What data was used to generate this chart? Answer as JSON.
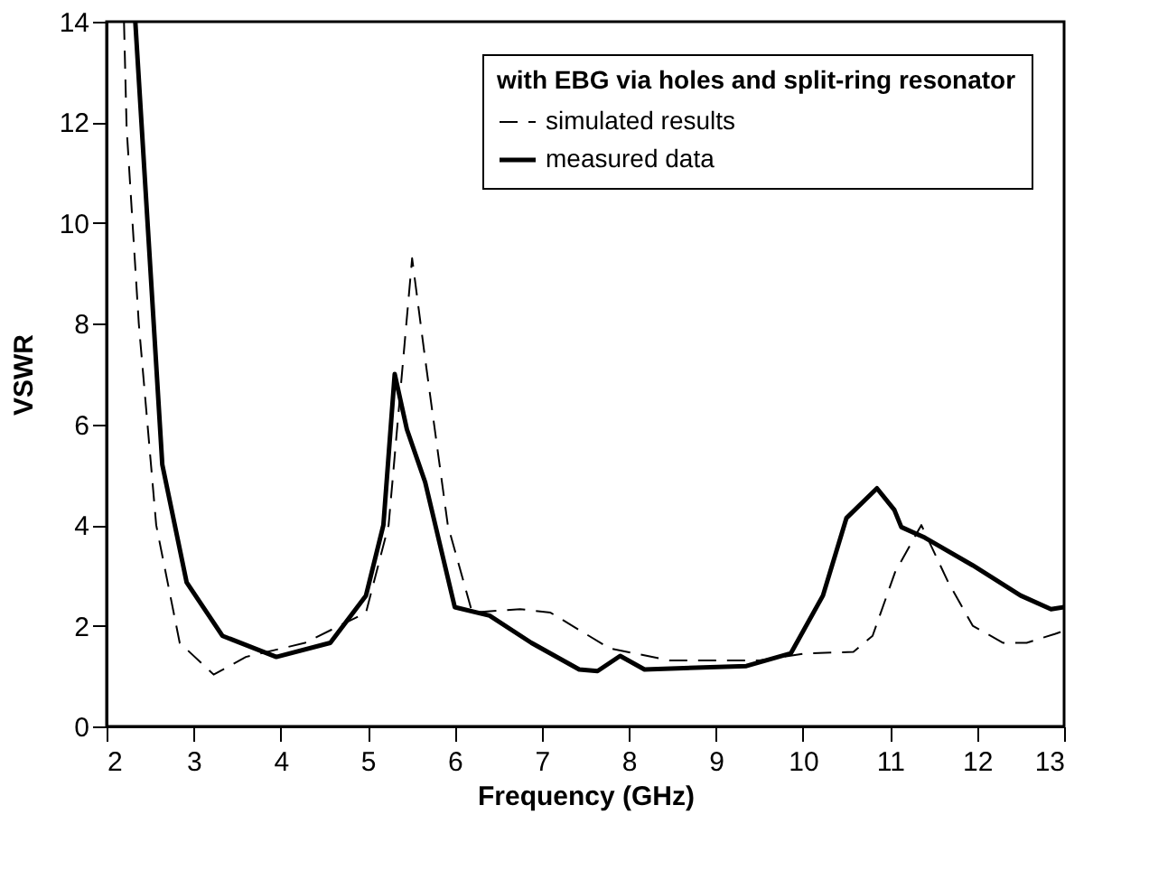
{
  "chart_data": {
    "type": "line",
    "xlabel": "Frequency (GHz)",
    "ylabel": "VSWR",
    "legend_title": "with EBG via holes and split-ring resonator",
    "xlim": [
      2,
      13
    ],
    "xticks": [
      2,
      3,
      4,
      5,
      6,
      7,
      8,
      9,
      10,
      11,
      12,
      13
    ],
    "ylim": [
      0,
      14
    ],
    "yticks": [
      0,
      2,
      4,
      6,
      8,
      10,
      12,
      14
    ],
    "grid": false,
    "legend": "top right",
    "marker": "none",
    "series": [
      {
        "name": "simulated results",
        "color": "#000000",
        "line_style": "dashed",
        "x": [
          2.2,
          2.23,
          2.37,
          2.57,
          2.84,
          3.23,
          3.6,
          4.28,
          4.98,
          5.24,
          5.51,
          5.66,
          5.92,
          6.2,
          6.75,
          7.1,
          7.78,
          8.47,
          9.5,
          10.03,
          10.58,
          10.8,
          11.06,
          11.36,
          11.67,
          11.95,
          12.3,
          12.57,
          12.9,
          13.0
        ],
        "values": [
          14,
          11.9,
          8.0,
          4.0,
          1.66,
          1.03,
          1.38,
          1.66,
          2.26,
          4.0,
          9.3,
          7.3,
          4.0,
          2.26,
          2.33,
          2.26,
          1.55,
          1.31,
          1.31,
          1.45,
          1.48,
          1.8,
          3.07,
          4.0,
          2.86,
          2.0,
          1.66,
          1.66,
          1.84,
          1.9
        ]
      },
      {
        "name": "measured data",
        "color": "#000000",
        "line_style": "solid",
        "x": [
          2.33,
          2.64,
          2.92,
          3.33,
          3.95,
          4.57,
          4.98,
          5.18,
          5.31,
          5.45,
          5.66,
          6.0,
          6.4,
          6.88,
          7.43,
          7.64,
          7.9,
          8.18,
          9.35,
          9.86,
          10.23,
          10.5,
          10.85,
          11.05,
          11.13,
          11.4,
          11.95,
          12.5,
          12.85,
          13.0
        ],
        "values": [
          14,
          5.2,
          2.86,
          1.8,
          1.38,
          1.66,
          2.6,
          4.0,
          7.0,
          5.9,
          4.85,
          2.37,
          2.2,
          1.66,
          1.13,
          1.1,
          1.4,
          1.13,
          1.2,
          1.45,
          2.6,
          4.14,
          4.73,
          4.3,
          3.96,
          3.75,
          3.2,
          2.6,
          2.33,
          2.37
        ]
      }
    ]
  }
}
